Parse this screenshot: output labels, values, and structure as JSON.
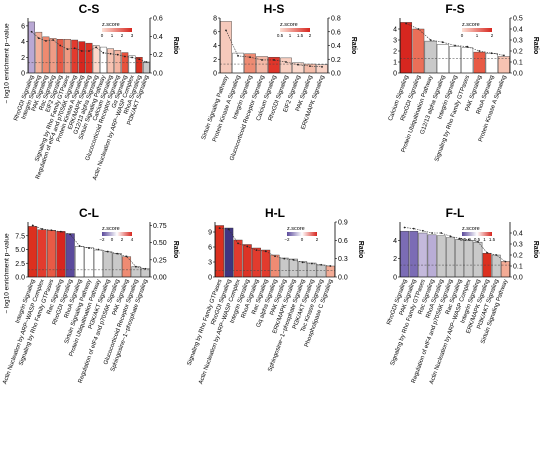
{
  "figure": {
    "left_axis_label": "− log10 enrichment p−value",
    "right_axis_label": "Ratio",
    "legend_title": "z.score"
  },
  "chart_data": [
    {
      "type": "bar",
      "title": "C-S",
      "categories": [
        "RhoGDI Signaling",
        "Integrin Signaling",
        "PAK Signaling",
        "Rac Signaling",
        "EIF2 Signaling",
        "Signaling by Rho Family GTPases",
        "Regulation of eIF4 and p70S6K Signaling",
        "Protein Kinase A Signaling",
        "ERK/MAPK Signaling",
        "G12/13 alpha Signaling",
        "Sirtuin Signaling Pathway",
        "Calcium Signaling",
        "Glucocorticoid Receptor Signaling",
        "Gα Signaling",
        "Actin Nucleation by ARP−WASP Complex",
        "RhoA Signaling",
        "PI3K/AKT Signaling"
      ],
      "values": [
        6.5,
        5.2,
        4.6,
        4.4,
        4.3,
        4.3,
        4.2,
        4.0,
        3.8,
        3.5,
        3.3,
        3.1,
        2.9,
        2.6,
        2.2,
        2.0,
        1.4
      ],
      "ratio": [
        0.45,
        0.38,
        0.35,
        0.36,
        0.3,
        0.26,
        0.27,
        0.24,
        0.24,
        0.28,
        0.22,
        0.21,
        0.2,
        0.18,
        0.17,
        0.15,
        0.12
      ],
      "colors": [
        "#b9a8d4",
        "#f3b09a",
        "#ee8a70",
        "#ef9c86",
        "#e85a45",
        "#ef9a82",
        "#e23b2e",
        "#d7261f",
        "#dd3326",
        "#fbd9cc",
        "#ffffff",
        "#f7c3b2",
        "#f4b5a2",
        "#e8523c",
        "#ffffff",
        "#dc301f",
        "#c9c9c9"
      ],
      "ylim": [
        0,
        7
      ],
      "yticks": [
        "0",
        "2",
        "4",
        "6"
      ],
      "ratio_lim": [
        0,
        0.6
      ],
      "ratio_ticks": [
        "0.0",
        "0.2",
        "0.4",
        "0.6"
      ],
      "legend": {
        "min": "0",
        "ticks": [
          "0",
          "1",
          "2",
          "3"
        ],
        "from": "#fde0d5",
        "to": "#d7261f"
      }
    },
    {
      "type": "bar",
      "title": "H-S",
      "categories": [
        "Sirtuin Signaling Pathway",
        "Protein Kinase A Signaling",
        "Integrin Signaling",
        "Glucocorticoid Receptor Signaling",
        "Calcium Signaling",
        "RhoGDI Signaling",
        "EIF2 Signaling",
        "PAK Signaling",
        "ERK/MAPK Signaling"
      ],
      "values": [
        7.5,
        2.9,
        2.8,
        2.4,
        2.3,
        2.2,
        1.5,
        1.3,
        1.2
      ],
      "ratio": [
        0.62,
        0.25,
        0.23,
        0.19,
        0.19,
        0.16,
        0.12,
        0.1,
        0.09
      ],
      "colors": [
        "#f6c9bb",
        "#ffffff",
        "#ee8b73",
        "#f4b7a5",
        "#e0352a",
        "#f8cfc1",
        "#fbd9cc",
        "#f5bca9",
        "#f9d3c6"
      ],
      "ylim": [
        0,
        8
      ],
      "yticks": [
        "0",
        "2",
        "4",
        "6",
        "8"
      ],
      "ratio_lim": [
        0,
        0.8
      ],
      "ratio_ticks": [
        "0.0",
        "0.2",
        "0.4",
        "0.6",
        "0.8"
      ],
      "legend": {
        "min": "0.5",
        "ticks": [
          "0.5",
          "1",
          "1.5",
          "2"
        ],
        "from": "#fde0d5",
        "to": "#d7261f"
      }
    },
    {
      "type": "bar",
      "title": "F-S",
      "categories": [
        "Calcium Signaling",
        "RhoGDI Signaling",
        "Protein Ubiquitination Pathway",
        "G12/13 alpha Signaling",
        "Integrin Signaling",
        "Signaling by Rho Family GTPases",
        "PAK Signaling",
        "RhoA Signaling",
        "Protein Kinase A Signaling"
      ],
      "values": [
        4.6,
        4.0,
        2.9,
        2.6,
        2.4,
        2.3,
        1.9,
        1.8,
        1.5
      ],
      "ratio": [
        0.45,
        0.4,
        0.3,
        0.28,
        0.25,
        0.24,
        0.2,
        0.18,
        0.16
      ],
      "colors": [
        "#d7261f",
        "#eb6f58",
        "#c9c9c9",
        "#ffffff",
        "#ffffff",
        "#ffffff",
        "#e85a45",
        "#ffffff",
        "#f7c3b2"
      ],
      "ylim": [
        0,
        5
      ],
      "yticks": [
        "0",
        "1",
        "2",
        "3",
        "4"
      ],
      "ratio_lim": [
        0,
        0.5
      ],
      "ratio_ticks": [
        "0.0",
        "0.1",
        "0.2",
        "0.3",
        "0.4",
        "0.5"
      ],
      "legend": {
        "min": "0",
        "ticks": [
          "0",
          "1",
          "2"
        ],
        "from": "#fde0d5",
        "to": "#d7261f"
      }
    },
    {
      "type": "bar",
      "title": "C-L",
      "categories": [
        "Integrin Signaling",
        "Actin Nucleation by ARP−WASP Complex",
        "Signaling by Rho Family GTPases",
        "Rac Signaling",
        "RhoGDI Signaling",
        "RhoA Signaling",
        "Sirtuin Signaling Pathway",
        "Protein Ubiquitination Pathway",
        "PI3K/AKT Signaling",
        "Regulation of eIF4 and p70S6K Signaling",
        "PAK Signaling",
        "Glucocorticoid Receptor Signaling",
        "Sphingosine−1−phosphate Signaling"
      ],
      "values": [
        9.2,
        8.6,
        8.5,
        8.3,
        7.9,
        5.6,
        5.4,
        4.9,
        4.6,
        4.3,
        3.7,
        1.9,
        1.5
      ],
      "ratio": [
        0.75,
        0.7,
        0.68,
        0.66,
        0.62,
        0.45,
        0.42,
        0.4,
        0.37,
        0.34,
        0.3,
        0.15,
        0.12
      ],
      "colors": [
        "#dc301f",
        "#e23b2e",
        "#e85a45",
        "#d7261f",
        "#5b4a9c",
        "#ffffff",
        "#ffffff",
        "#ffffff",
        "#c9c9c9",
        "#c9c9c9",
        "#ee8b73",
        "#c9c9c9",
        "#c9c9c9"
      ],
      "ylim": [
        0,
        10
      ],
      "yticks": [
        "0.0",
        "2.5",
        "5.0",
        "7.5"
      ],
      "ratio_lim": [
        0,
        0.8
      ],
      "ratio_ticks": [
        "0.00",
        "0.25",
        "0.50",
        "0.75"
      ],
      "legend": {
        "min": "−2",
        "ticks": [
          "−2",
          "0",
          "2",
          "4"
        ],
        "from": "#5b4a9c",
        "to": "#d7261f",
        "mid": "#ffffff"
      }
    },
    {
      "type": "bar",
      "title": "H-L",
      "categories": [
        "Signaling by Rho Family GTPases",
        "RhoGDI Signaling",
        "Actin Nucleation by ARP−WASP Complex",
        "Integrin Signaling",
        "RhoA Signaling",
        "Rac Signaling",
        "Gq alpha Signaling",
        "PAK Signaling",
        "ERK/MAPK Signaling",
        "Sphingosine−1−phosphate Signaling",
        "PI3K/AKT Signaling",
        "Tec Kinase Signaling",
        "Phospholipase C Signaling"
      ],
      "values": [
        10.3,
        9.8,
        7.4,
        6.5,
        5.8,
        5.4,
        4.4,
        3.8,
        3.6,
        3.1,
        2.8,
        2.4,
        2.2
      ],
      "ratio": [
        0.8,
        0.78,
        0.55,
        0.5,
        0.44,
        0.42,
        0.34,
        0.3,
        0.28,
        0.24,
        0.22,
        0.2,
        0.18
      ],
      "colors": [
        "#dc301f",
        "#3f3580",
        "#e23b2e",
        "#dd3326",
        "#e23b2e",
        "#e23b2e",
        "#ee8b73",
        "#c9c9c9",
        "#c9c9c9",
        "#c9c9c9",
        "#c9c9c9",
        "#c9c9c9",
        "#f3ab95"
      ],
      "ylim": [
        0,
        11
      ],
      "yticks": [
        "0",
        "3",
        "6",
        "9"
      ],
      "ratio_lim": [
        0,
        0.9
      ],
      "ratio_ticks": [
        "0.0",
        "0.3",
        "0.6",
        "0.9"
      ],
      "legend": {
        "min": "−2",
        "ticks": [
          "−2",
          "0",
          "2"
        ],
        "from": "#5b4a9c",
        "to": "#d7261f",
        "mid": "#ffffff"
      }
    },
    {
      "type": "bar",
      "title": "F-L",
      "categories": [
        "RhoGDI Signaling",
        "PAK Signaling",
        "Signaling by Rho Family GTPases",
        "Rac Signaling",
        "RhoA Signaling",
        "Regulation of eIF4 and p70S6K Signaling",
        "Rac Signaling",
        "Actin Nucleation by ARP−WASP Complex",
        "Integrin Signaling",
        "ERK/MAPK Signaling",
        "PI3K/AKT Signaling",
        "Sirtuin Signaling Pathway"
      ],
      "values": [
        5.0,
        5.0,
        4.8,
        4.6,
        4.5,
        4.3,
        4.1,
        4.0,
        3.8,
        2.6,
        2.4,
        1.7
      ],
      "ratio": [
        0.45,
        0.44,
        0.42,
        0.4,
        0.4,
        0.37,
        0.35,
        0.34,
        0.32,
        0.22,
        0.2,
        0.14
      ],
      "colors": [
        "#7b6cb5",
        "#7b6cb5",
        "#c4b9dc",
        "#b9add6",
        "#c9c9c9",
        "#c9c9c9",
        "#c9c9c9",
        "#c9c9c9",
        "#c9c9c9",
        "#dc301f",
        "#c9c9c9",
        "#f3ab95"
      ],
      "ylim": [
        0,
        6
      ],
      "yticks": [
        "0",
        "2",
        "4"
      ],
      "ratio_lim": [
        0,
        0.5
      ],
      "ratio_ticks": [
        "0.0",
        "0.1",
        "0.2",
        "0.3",
        "0.4"
      ],
      "legend": {
        "min": "−0.5",
        "ticks": [
          "−0.5",
          "0",
          "0.5",
          "1",
          "1.5"
        ],
        "from": "#5b4a9c",
        "to": "#d7261f",
        "mid": "#ffffff"
      }
    }
  ]
}
